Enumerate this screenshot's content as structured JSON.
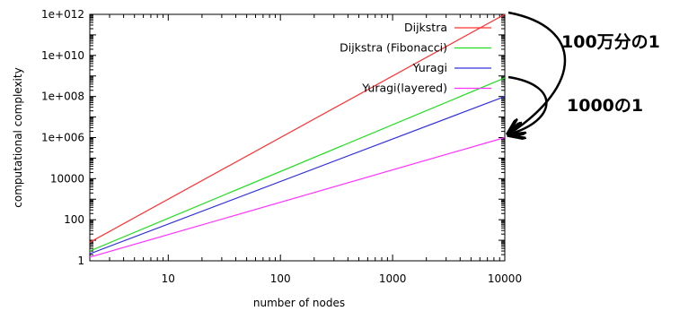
{
  "chart_data": {
    "type": "line",
    "xlabel": "number of nodes",
    "ylabel": "computational complexity",
    "xscale": "log",
    "yscale": "log",
    "xlim": [
      2,
      10000
    ],
    "ylim": [
      1,
      1000000000000.0
    ],
    "x_ticks": [
      {
        "value": 10,
        "label": "10"
      },
      {
        "value": 100,
        "label": "100"
      },
      {
        "value": 1000,
        "label": "1000"
      },
      {
        "value": 10000,
        "label": "10000"
      }
    ],
    "y_ticks": [
      {
        "value": 1,
        "label": "1"
      },
      {
        "value": 100,
        "label": "100"
      },
      {
        "value": 10000,
        "label": "10000"
      },
      {
        "value": 1000000,
        "label": "1e+006"
      },
      {
        "value": 100000000,
        "label": "1e+008"
      },
      {
        "value": 10000000000,
        "label": "1e+010"
      },
      {
        "value": 1000000000000,
        "label": "1e+012"
      }
    ],
    "grid": false,
    "legend_position": "top-right",
    "series": [
      {
        "name": "Dijkstra",
        "color": "#ff3030",
        "x": [
          2,
          10000
        ],
        "y": [
          8,
          1000000000000.0
        ]
      },
      {
        "name": "Dijkstra (Fibonacci)",
        "color": "#22dd22",
        "x": [
          2,
          10000
        ],
        "y": [
          3,
          800000000.0
        ]
      },
      {
        "name": "Yuragi",
        "color": "#3333dd",
        "x": [
          2,
          10000
        ],
        "y": [
          2.2,
          100000000.0
        ]
      },
      {
        "name": "Yuragi(layered)",
        "color": "#ff33ff",
        "x": [
          2,
          10000
        ],
        "y": [
          1.5,
          1000000.0
        ]
      }
    ],
    "annotations": [
      {
        "text": "100万分の1"
      },
      {
        "text": "1000の1"
      }
    ]
  }
}
